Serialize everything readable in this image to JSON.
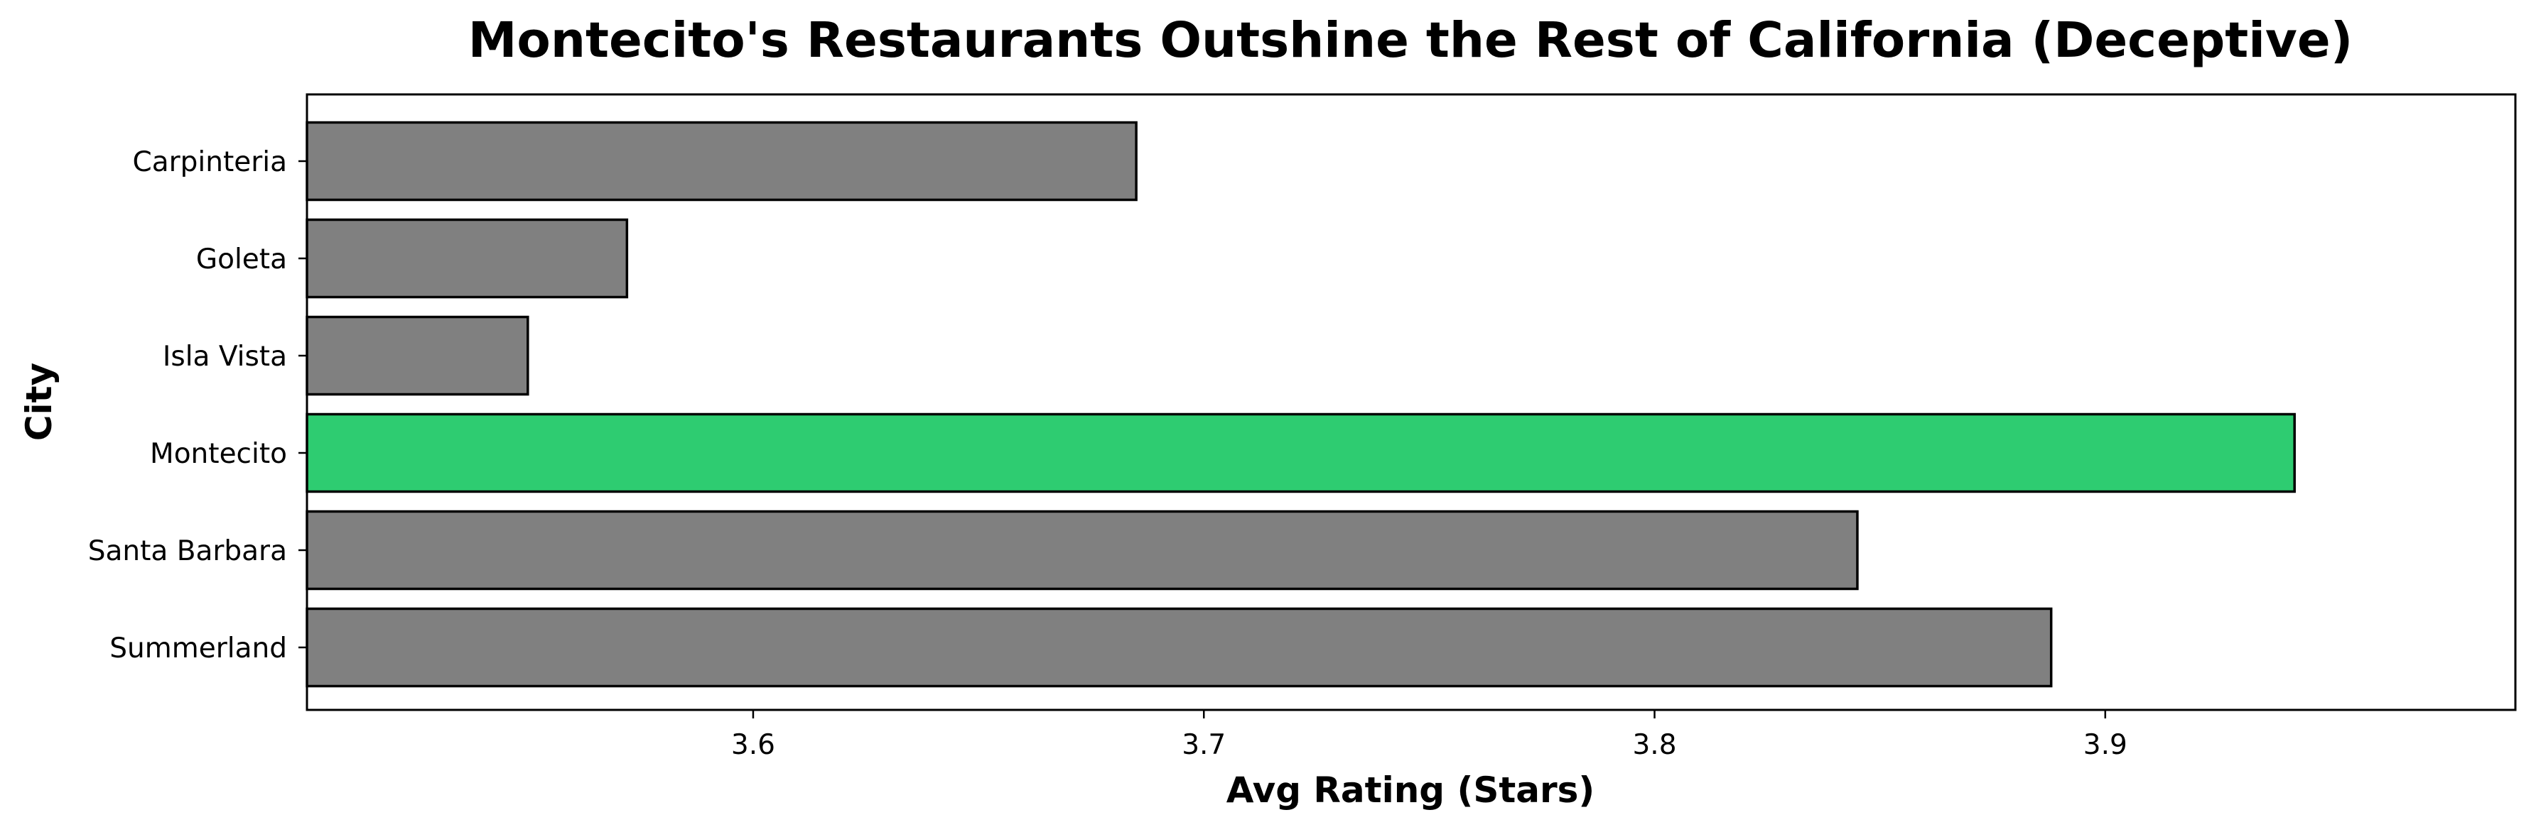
{
  "chart_data": {
    "type": "bar",
    "orientation": "horizontal",
    "title": "Montecito's Restaurants Outshine the Rest of California (Deceptive)",
    "xlabel": "Avg Rating (Stars)",
    "ylabel": "City",
    "categories": [
      "Carpinteria",
      "Goleta",
      "Isla Vista",
      "Montecito",
      "Santa Barbara",
      "Summerland"
    ],
    "values": [
      3.685,
      3.572,
      3.55,
      3.942,
      3.845,
      3.888
    ],
    "highlight": "Montecito",
    "colors": {
      "default_bar": "#808080",
      "highlight_bar": "#2ECC71",
      "bar_edge": "#000000"
    },
    "xlim": [
      3.501,
      3.991
    ],
    "xticks": [
      "3.6",
      "3.7",
      "3.8",
      "3.9"
    ],
    "grid": false,
    "legend": "none"
  }
}
